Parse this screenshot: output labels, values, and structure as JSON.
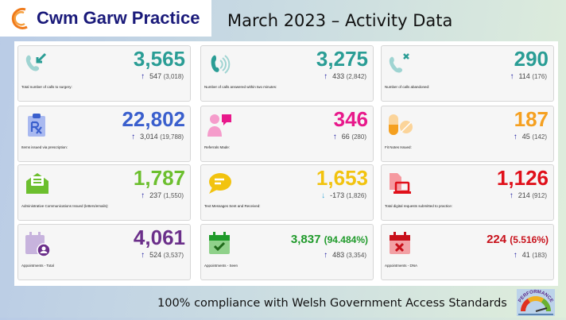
{
  "header": {
    "logo_text": "Cwm Garw Practice",
    "title": "March 2023 – Activity Data"
  },
  "cards": [
    {
      "value": "3,565",
      "delta": "547",
      "prev": "(3,018)",
      "direction": "up",
      "label": "Total number of calls to surgery:",
      "color": "#2a9d95",
      "icon": "phone-incoming-icon"
    },
    {
      "value": "3,275",
      "delta": "433",
      "prev": "(2,842)",
      "direction": "up",
      "label": "Number of calls answered within two minutes:",
      "color": "#2a9d95",
      "icon": "phone-ringing-icon"
    },
    {
      "value": "290",
      "delta": "114",
      "prev": "(176)",
      "direction": "up",
      "label": "Number of calls abandoned:",
      "color": "#2a9d95",
      "icon": "phone-missed-icon"
    },
    {
      "value": "22,802",
      "delta": "3,014",
      "prev": "(19,788)",
      "direction": "up",
      "label": "Items issued via prescription:",
      "color": "#3a5fcd",
      "icon": "prescription-icon"
    },
    {
      "value": "346",
      "delta": "66",
      "prev": "(280)",
      "direction": "up",
      "label": "Referrals Made:",
      "color": "#e8198b",
      "icon": "doctor-chat-icon"
    },
    {
      "value": "187",
      "delta": "45",
      "prev": "(142)",
      "direction": "up",
      "label": "Fit Notes Issued:",
      "color": "#f5a020",
      "icon": "pills-icon"
    },
    {
      "value": "1,787",
      "delta": "237",
      "prev": "(1,550)",
      "direction": "up",
      "label": "Administrative Communications Issued (letters/emails):",
      "color": "#6cbf2e",
      "icon": "envelope-open-icon"
    },
    {
      "value": "1,653",
      "delta": "-173",
      "prev": "(1,826)",
      "direction": "down",
      "label": "Text Messages Sent and Received:",
      "color": "#f2c30f",
      "icon": "chat-bubble-icon"
    },
    {
      "value": "1,126",
      "delta": "214",
      "prev": "(912)",
      "direction": "up",
      "label": "Total digital requests submitted to practice:",
      "color": "#e0101a",
      "icon": "digital-request-icon"
    },
    {
      "value": "4,061",
      "delta": "524",
      "prev": "(3,537)",
      "direction": "up",
      "label": "Appointments - Total",
      "color": "#6b2f8a",
      "icon": "calendar-user-icon"
    },
    {
      "value": "3,837",
      "pct": "(94.484%)",
      "delta": "483",
      "prev": "(3,354)",
      "direction": "up",
      "label": "Appointments - Seen",
      "color": "#1f9a2a",
      "icon": "calendar-check-icon"
    },
    {
      "value": "224",
      "pct": "(5.516%)",
      "delta": "41",
      "prev": "(183)",
      "direction": "up",
      "label": "Appointments - DNA",
      "color": "#c8101a",
      "icon": "calendar-x-icon"
    }
  ],
  "footer": {
    "text": "100% compliance with Welsh Government Access Standards",
    "badge_text": "PERFORMANCE"
  }
}
